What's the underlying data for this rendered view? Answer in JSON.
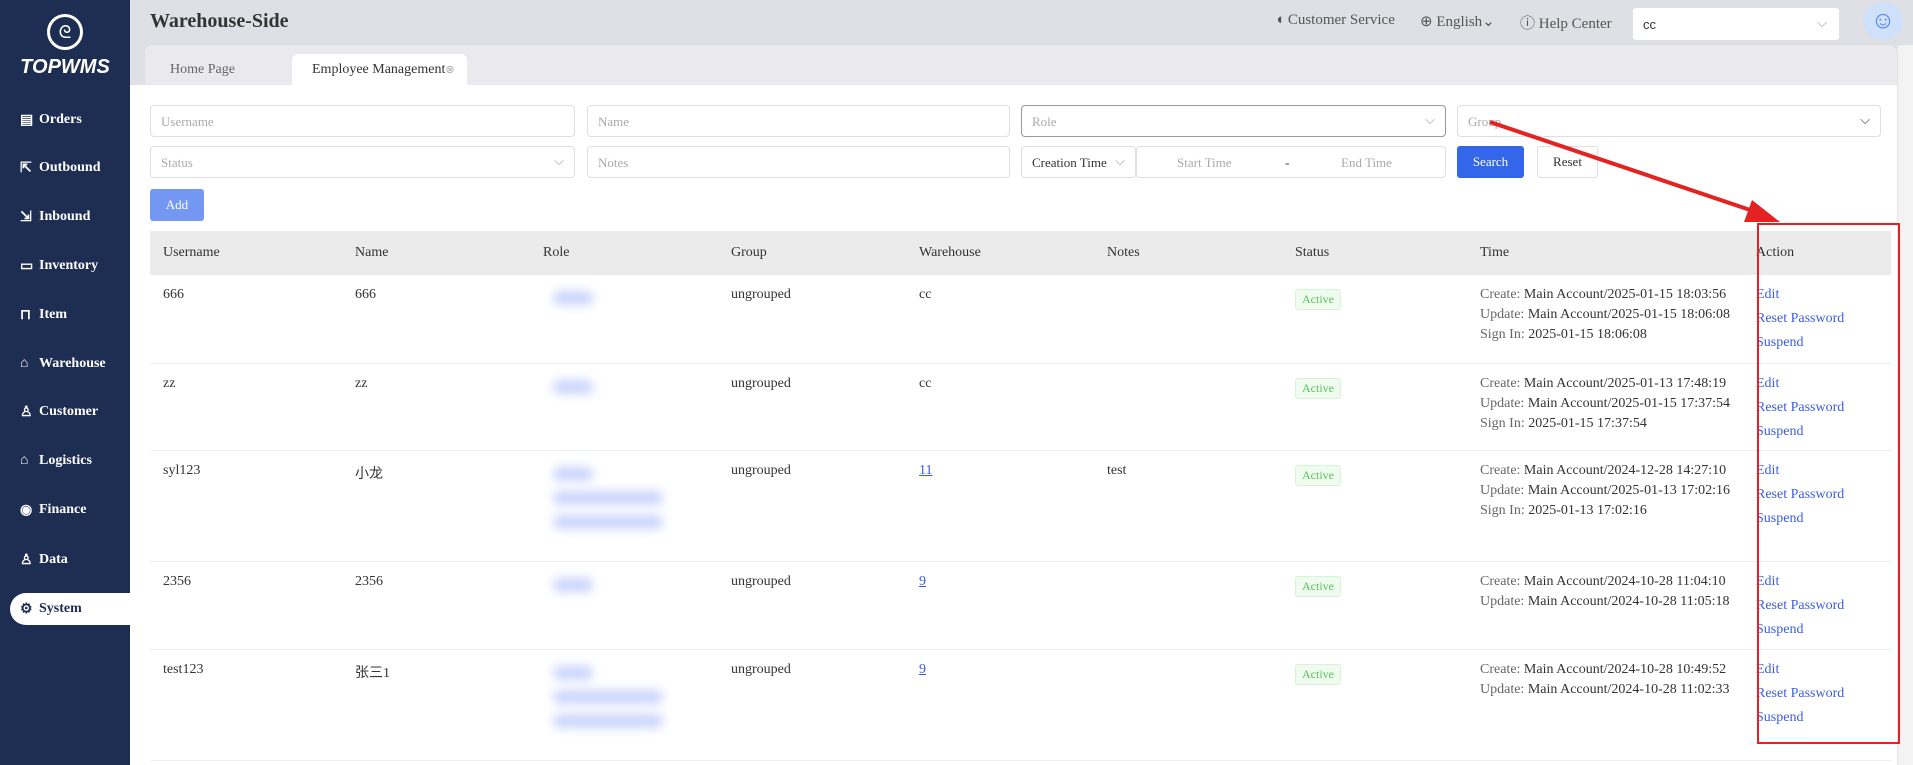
{
  "brand": {
    "name": "TOPWMS"
  },
  "sidebar": {
    "items": [
      {
        "label": "Orders",
        "icon": "clipboard-icon",
        "glyph": "▤"
      },
      {
        "label": "Outbound",
        "icon": "outbound-icon",
        "glyph": "⇱"
      },
      {
        "label": "Inbound",
        "icon": "inbound-icon",
        "glyph": "⇲"
      },
      {
        "label": "Inventory",
        "icon": "inventory-icon",
        "glyph": "▭"
      },
      {
        "label": "Item",
        "icon": "basket-icon",
        "glyph": "⊓"
      },
      {
        "label": "Warehouse",
        "icon": "warehouse-icon",
        "glyph": "⌂"
      },
      {
        "label": "Customer",
        "icon": "user-icon",
        "glyph": "♙"
      },
      {
        "label": "Logistics",
        "icon": "logistics-icon",
        "glyph": "⌂"
      },
      {
        "label": "Finance",
        "icon": "finance-icon",
        "glyph": "◉"
      },
      {
        "label": "Data",
        "icon": "data-icon",
        "glyph": "♙"
      },
      {
        "label": "System",
        "icon": "gear-icon",
        "glyph": "⚙",
        "active": true
      }
    ]
  },
  "header": {
    "title": "Warehouse-Side",
    "customer_service": "Customer Service",
    "language": "English",
    "help": "Help Center",
    "warehouse": "cc"
  },
  "tabs": [
    {
      "label": "Home Page"
    },
    {
      "label": "Employee Management"
    }
  ],
  "filters": {
    "username": "Username",
    "name": "Name",
    "role": "Role",
    "group": "Group",
    "status": "Status",
    "notes": "Notes",
    "time_type": "Creation Time",
    "start": "Start Time",
    "sep": "-",
    "end": "End Time",
    "search": "Search",
    "reset": "Reset",
    "add": "Add"
  },
  "table": {
    "columns": [
      "Username",
      "Name",
      "Role",
      "Group",
      "Warehouse",
      "Notes",
      "Status",
      "Time",
      "Action"
    ],
    "labels": {
      "create": "Create:",
      "update": "Update:",
      "signin": "Sign In:"
    },
    "actions": [
      "Edit",
      "Reset Password",
      "Suspend"
    ],
    "rows": [
      {
        "username": "666",
        "name": "666",
        "group": "ungrouped",
        "warehouse": "cc",
        "wh_link": false,
        "notes": "",
        "status": "Active",
        "create": "Main Account/2025-01-15 18:03:56",
        "update": "Main Account/2025-01-15 18:06:08",
        "signin": "2025-01-15 18:06:08",
        "blur": 1
      },
      {
        "username": "zz",
        "name": "zz",
        "group": "ungrouped",
        "warehouse": "cc",
        "wh_link": false,
        "notes": "",
        "status": "Active",
        "create": "Main Account/2025-01-13 17:48:19",
        "update": "Main Account/2025-01-15 17:37:54",
        "signin": "2025-01-15 17:37:54",
        "blur": 1
      },
      {
        "username": "syl123",
        "name": "小龙",
        "group": "ungrouped",
        "warehouse": "11",
        "wh_link": true,
        "notes": "test",
        "status": "Active",
        "create": "Main Account/2024-12-28 14:27:10",
        "update": "Main Account/2025-01-13 17:02:16",
        "signin": "2025-01-13 17:02:16",
        "blur": 3
      },
      {
        "username": "2356",
        "name": "2356",
        "group": "ungrouped",
        "warehouse": "9",
        "wh_link": true,
        "notes": "",
        "status": "Active",
        "create": "Main Account/2024-10-28 11:04:10",
        "update": "Main Account/2024-10-28 11:05:18",
        "blur": 1
      },
      {
        "username": "test123",
        "name": "张三1",
        "group": "ungrouped",
        "warehouse": "9",
        "wh_link": true,
        "notes": "",
        "status": "Active",
        "create": "Main Account/2024-10-28 10:49:52",
        "update": "Main Account/2024-10-28 11:02:33",
        "blur": 3
      }
    ]
  },
  "colors": {
    "sidebar": "#1e2d52",
    "primary": "#3366e8",
    "link": "#3b5ce6",
    "active": "#5cc05c",
    "annotation": "#e32222"
  }
}
